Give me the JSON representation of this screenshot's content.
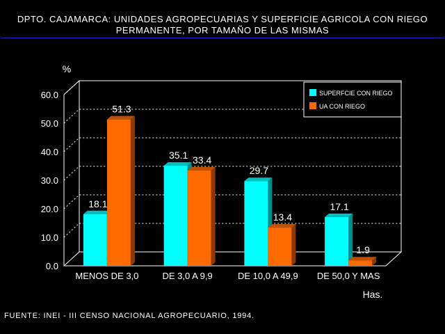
{
  "title_line1": "DPTO. CAJAMARCA: UNIDADES AGROPECUARIAS Y SUPERFICIE AGRICOLA CON RIEGO",
  "title_line2": "PERMANENTE, POR TAMAÑO DE LAS MISMAS",
  "source": "FUENTE: INEI - III CENSO NACIONAL AGROPECUARIO, 1994.",
  "colors": {
    "series1": "#00ffff",
    "series2": "#ff6a00",
    "background": "#000000",
    "title_rule": "#2222cc"
  },
  "chart_data": {
    "type": "bar",
    "title": "",
    "ylabel": "%",
    "xlabel": "Has.",
    "ylim": [
      0,
      60
    ],
    "yticks": [
      "0.0",
      "10.0",
      "20.0",
      "30.0",
      "40.0",
      "50.0",
      "60.0"
    ],
    "grid": true,
    "legend_position": "top-right",
    "categories": [
      "MENOS DE 3,0",
      "DE 3,0 A 9,9",
      "DE 10,0 A 49,9",
      "DE 50,0 Y MAS"
    ],
    "series": [
      {
        "name": "SUPERFCIE CON RIEGO",
        "values": [
          18.1,
          35.1,
          29.7,
          17.1
        ],
        "labels": [
          "18.1",
          "35.1",
          "29.7",
          "17.1"
        ]
      },
      {
        "name": "UA CON RIEGO",
        "values": [
          51.3,
          33.4,
          13.4,
          1.9
        ],
        "labels": [
          "51.3",
          "33.4",
          "13.4",
          "1.9"
        ]
      }
    ]
  }
}
